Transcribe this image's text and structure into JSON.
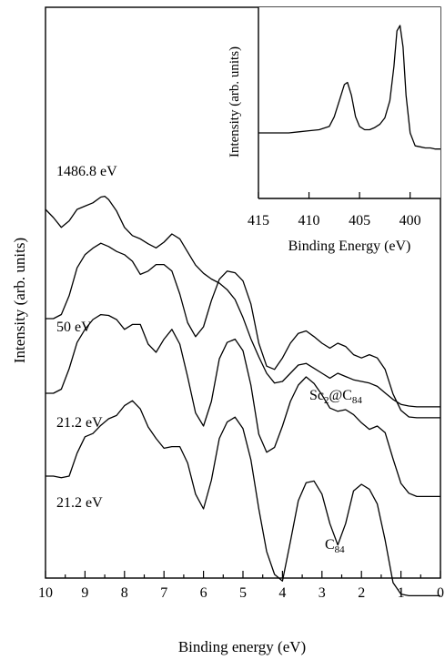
{
  "chart_data": [
    {
      "type": "line",
      "title": "",
      "xlabel": "Binding energy (eV)",
      "ylabel": "Intensity (arb. units)",
      "xlim": [
        10,
        0
      ],
      "x_ticks": [
        "10",
        "9",
        "8",
        "7",
        "6",
        "5",
        "4",
        "3",
        "2",
        "1",
        "0"
      ],
      "grid": false,
      "series": [
        {
          "label": "1486.8 eV",
          "x": [
            10.0,
            9.8,
            9.6,
            9.4,
            9.2,
            9.0,
            8.8,
            8.6,
            8.5,
            8.4,
            8.2,
            8.0,
            7.8,
            7.6,
            7.4,
            7.2,
            7.0,
            6.8,
            6.6,
            6.4,
            6.2,
            6.0,
            5.8,
            5.6,
            5.4,
            5.2,
            5.0,
            4.8,
            4.6,
            4.4,
            4.2,
            4.0,
            3.8,
            3.6,
            3.4,
            3.2,
            3.0,
            2.8,
            2.6,
            2.4,
            2.2,
            2.0,
            1.8,
            1.6,
            1.4,
            1.2,
            1.0,
            0.8,
            0.6,
            0.4,
            0.2,
            0.0
          ],
          "y": [
            0.8,
            0.7,
            0.58,
            0.66,
            0.8,
            0.84,
            0.88,
            0.95,
            0.96,
            0.92,
            0.78,
            0.58,
            0.48,
            0.44,
            0.38,
            0.33,
            0.4,
            0.5,
            0.44,
            0.28,
            0.12,
            0.02,
            -0.05,
            -0.1,
            -0.18,
            -0.3,
            -0.52,
            -0.78,
            -1.0,
            -1.2,
            -1.32,
            -1.3,
            -1.2,
            -1.1,
            -1.08,
            -1.14,
            -1.2,
            -1.26,
            -1.2,
            -1.24,
            -1.28,
            -1.3,
            -1.32,
            -1.36,
            -1.44,
            -1.52,
            -1.58,
            -1.6,
            -1.61,
            -1.61,
            -1.61,
            -1.61
          ]
        },
        {
          "label": "50 eV",
          "x": [
            10.0,
            9.8,
            9.6,
            9.4,
            9.2,
            9.0,
            8.8,
            8.6,
            8.4,
            8.2,
            8.0,
            7.8,
            7.6,
            7.4,
            7.2,
            7.0,
            6.8,
            6.6,
            6.4,
            6.2,
            6.0,
            5.8,
            5.6,
            5.4,
            5.2,
            5.0,
            4.8,
            4.6,
            4.4,
            4.2,
            4.0,
            3.8,
            3.6,
            3.4,
            3.2,
            3.0,
            2.8,
            2.6,
            2.4,
            2.2,
            2.0,
            1.8,
            1.6,
            1.4,
            1.2,
            1.0,
            0.8,
            0.6,
            0.4,
            0.2,
            0.0
          ],
          "y": [
            0.0,
            0.0,
            0.05,
            0.28,
            0.62,
            0.78,
            0.86,
            0.92,
            0.88,
            0.82,
            0.78,
            0.7,
            0.54,
            0.58,
            0.66,
            0.66,
            0.58,
            0.3,
            -0.05,
            -0.22,
            -0.1,
            0.22,
            0.48,
            0.58,
            0.56,
            0.46,
            0.18,
            -0.3,
            -0.58,
            -0.62,
            -0.48,
            -0.3,
            -0.18,
            -0.15,
            -0.22,
            -0.3,
            -0.36,
            -0.3,
            -0.34,
            -0.44,
            -0.48,
            -0.44,
            -0.48,
            -0.62,
            -0.92,
            -1.12,
            -1.2,
            -1.21,
            -1.21,
            -1.21,
            -1.21
          ]
        },
        {
          "label": "21.2 eV",
          "x": [
            10.0,
            9.8,
            9.6,
            9.4,
            9.2,
            9.0,
            8.8,
            8.6,
            8.4,
            8.2,
            8.0,
            7.8,
            7.6,
            7.4,
            7.2,
            7.0,
            6.8,
            6.6,
            6.4,
            6.2,
            6.0,
            5.8,
            5.6,
            5.4,
            5.2,
            5.0,
            4.8,
            4.6,
            4.4,
            4.2,
            4.0,
            3.8,
            3.6,
            3.4,
            3.2,
            3.0,
            2.8,
            2.6,
            2.4,
            2.2,
            2.0,
            1.8,
            1.6,
            1.4,
            1.2,
            1.0,
            0.8,
            0.6,
            0.4,
            0.2,
            0.0
          ],
          "y": [
            0.0,
            0.0,
            0.05,
            0.3,
            0.62,
            0.78,
            0.9,
            0.96,
            0.95,
            0.9,
            0.78,
            0.84,
            0.84,
            0.6,
            0.5,
            0.66,
            0.78,
            0.6,
            0.2,
            -0.24,
            -0.4,
            -0.1,
            0.42,
            0.62,
            0.66,
            0.52,
            0.1,
            -0.5,
            -0.72,
            -0.66,
            -0.4,
            -0.1,
            0.1,
            0.2,
            0.12,
            -0.02,
            -0.18,
            -0.22,
            -0.2,
            -0.26,
            -0.36,
            -0.44,
            -0.4,
            -0.48,
            -0.8,
            -1.1,
            -1.22,
            -1.26,
            -1.26,
            -1.26,
            -1.26
          ]
        },
        {
          "label": "21.2 eV",
          "x": [
            10.0,
            9.8,
            9.6,
            9.4,
            9.2,
            9.0,
            8.8,
            8.6,
            8.4,
            8.2,
            8.0,
            7.8,
            7.6,
            7.4,
            7.2,
            7.0,
            6.8,
            6.6,
            6.4,
            6.2,
            6.0,
            5.8,
            5.6,
            5.4,
            5.2,
            5.0,
            4.8,
            4.6,
            4.4,
            4.2,
            4.0,
            3.8,
            3.6,
            3.4,
            3.2,
            3.0,
            2.8,
            2.6,
            2.4,
            2.2,
            2.0,
            1.8,
            1.6,
            1.4,
            1.2,
            1.0,
            0.8,
            0.6,
            0.4,
            0.2,
            0.0
          ],
          "y": [
            0.0,
            0.0,
            -0.02,
            0.0,
            0.28,
            0.48,
            0.52,
            0.62,
            0.7,
            0.74,
            0.86,
            0.92,
            0.82,
            0.6,
            0.46,
            0.34,
            0.36,
            0.36,
            0.16,
            -0.22,
            -0.4,
            -0.05,
            0.46,
            0.66,
            0.72,
            0.58,
            0.2,
            -0.4,
            -0.92,
            -1.2,
            -1.28,
            -0.8,
            -0.3,
            -0.08,
            -0.06,
            -0.22,
            -0.58,
            -0.84,
            -0.58,
            -0.18,
            -0.1,
            -0.16,
            -0.34,
            -0.78,
            -1.3,
            -1.44,
            -1.46,
            -1.46,
            -1.46,
            -1.46,
            -1.46
          ]
        }
      ],
      "annotations": [
        "1486.8 eV",
        "50 eV",
        "21.2 eV",
        "21.2 eV"
      ],
      "labels": {
        "sc2c84_main": "Sc",
        "sc2c84_sub1": "2",
        "sc2c84_at": "@C",
        "sc2c84_sub2": "84",
        "c84_main": "C",
        "c84_sub": "84"
      }
    },
    {
      "type": "line",
      "title": "",
      "inset": true,
      "xlabel": "Binding Energy (eV)",
      "ylabel": "Intensity (arb. units)",
      "xlim": [
        415,
        397
      ],
      "x_ticks": [
        "415",
        "410",
        "405",
        "400"
      ],
      "grid": false,
      "series": [
        {
          "x": [
            415.0,
            414.0,
            413.0,
            412.0,
            411.0,
            410.0,
            409.0,
            408.0,
            407.5,
            407.0,
            406.5,
            406.2,
            405.8,
            405.4,
            405.0,
            404.5,
            404.0,
            403.5,
            403.0,
            402.5,
            402.0,
            401.6,
            401.3,
            401.0,
            400.7,
            400.4,
            400.0,
            399.5,
            399.0,
            398.5,
            398.0,
            397.5,
            397.0
          ],
          "y": [
            0.0,
            0.0,
            0.0,
            0.0,
            0.01,
            0.02,
            0.03,
            0.06,
            0.15,
            0.3,
            0.45,
            0.47,
            0.35,
            0.15,
            0.06,
            0.03,
            0.03,
            0.05,
            0.08,
            0.14,
            0.3,
            0.62,
            0.95,
            1.0,
            0.8,
            0.35,
            0.0,
            -0.12,
            -0.13,
            -0.14,
            -0.14,
            -0.15,
            -0.15
          ]
        }
      ]
    }
  ]
}
